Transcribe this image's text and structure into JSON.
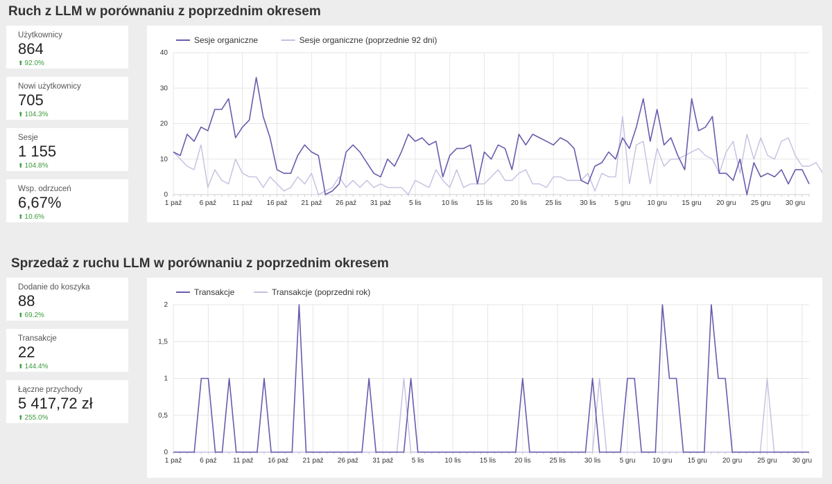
{
  "section1": {
    "title": "Ruch z LLM w porównaniu z poprzednim okresem"
  },
  "section2": {
    "title": "Sprzedaż z ruchu LLM w porównaniu z poprzednim okresem"
  },
  "kpis1": [
    {
      "label": "Użytkownicy",
      "value": "864",
      "delta": "92.0%"
    },
    {
      "label": "Nowi użytkownicy",
      "value": "705",
      "delta": "104.3%"
    },
    {
      "label": "Sesje",
      "value": "1 155",
      "delta": "104.8%"
    },
    {
      "label": "Wsp. odrzuceń",
      "value": "6,67%",
      "delta": "10.6%"
    }
  ],
  "kpis2": [
    {
      "label": "Dodanie do koszyka",
      "value": "88",
      "delta": "69.2%"
    },
    {
      "label": "Transakcje",
      "value": "22",
      "delta": "144.4%"
    },
    {
      "label": "Łączne przychody",
      "value": "5 417,72 zł",
      "delta": "255.0%"
    }
  ],
  "colors": {
    "primary": "#6a5aad",
    "secondary": "#c4bfe0",
    "positive": "#3a9a3a"
  },
  "chart_data": [
    {
      "type": "line",
      "xlabels": [
        "1 paź",
        "6 paź",
        "11 paź",
        "16 paź",
        "21 paź",
        "26 paź",
        "31 paź",
        "5 lis",
        "10 lis",
        "15 lis",
        "20 lis",
        "25 lis",
        "30 lis",
        "5 gru",
        "10 gru",
        "15 gru",
        "20 gru",
        "25 gru",
        "30 gru"
      ],
      "yticks": [
        0,
        10,
        20,
        30,
        40
      ],
      "ylim": [
        0,
        40
      ],
      "series": [
        {
          "name": "Sesje organiczne",
          "values": [
            12,
            11,
            17,
            15,
            19,
            18,
            24,
            24,
            27,
            16,
            19,
            21,
            33,
            22,
            16,
            7,
            6,
            6,
            11,
            14,
            12,
            11,
            0,
            1,
            3,
            12,
            14,
            12,
            9,
            6,
            5,
            10,
            8,
            12,
            17,
            15,
            16,
            14,
            15,
            5,
            11,
            13,
            13,
            14,
            3,
            12,
            10,
            14,
            13,
            7,
            17,
            14,
            17,
            16,
            15,
            14,
            16,
            15,
            13,
            4,
            3,
            8,
            9,
            12,
            10,
            16,
            13,
            19,
            27,
            15,
            24,
            14,
            16,
            11,
            7,
            27,
            18,
            19,
            22,
            6,
            6,
            4,
            10,
            0,
            9,
            5,
            6,
            5,
            7,
            3,
            7,
            7,
            3
          ]
        },
        {
          "name": "Sesje organiczne (poprzednie 92 dni)",
          "values": [
            12,
            10,
            8,
            7,
            14,
            2,
            7,
            4,
            3,
            10,
            6,
            5,
            5,
            2,
            5,
            3,
            1,
            2,
            5,
            3,
            6,
            0,
            1,
            2,
            5,
            2,
            4,
            2,
            4,
            2,
            3,
            2,
            2,
            2,
            0,
            4,
            3,
            2,
            7,
            4,
            2,
            7,
            2,
            3,
            3,
            3,
            5,
            7,
            4,
            4,
            6,
            7,
            3,
            3,
            2,
            5,
            5,
            4,
            4,
            4,
            6,
            1,
            6,
            5,
            5,
            22,
            3,
            14,
            15,
            3,
            13,
            8,
            10,
            10,
            11,
            12,
            13,
            11,
            10,
            6,
            12,
            15,
            6,
            17,
            10,
            16,
            11,
            10,
            15,
            16,
            11,
            8,
            8,
            9,
            6
          ]
        }
      ]
    },
    {
      "type": "line",
      "xlabels": [
        "1 paź",
        "6 paź",
        "11 paź",
        "16 paź",
        "21 paź",
        "26 paź",
        "31 paź",
        "5 lis",
        "10 lis",
        "15 lis",
        "20 lis",
        "25 lis",
        "30 lis",
        "5 gru",
        "10 gru",
        "15 gru",
        "20 gru",
        "25 gru",
        "30 gru"
      ],
      "yticks": [
        "0",
        "0,5",
        "1",
        "1,5",
        "2"
      ],
      "ylim": [
        0,
        2
      ],
      "series": [
        {
          "name": "Transakcje",
          "values": [
            0,
            0,
            0,
            0,
            1,
            1,
            0,
            0,
            1,
            0,
            0,
            0,
            0,
            1,
            0,
            0,
            0,
            0,
            2,
            0,
            0,
            0,
            0,
            0,
            0,
            0,
            0,
            0,
            1,
            0,
            0,
            0,
            0,
            0,
            1,
            0,
            0,
            0,
            0,
            0,
            0,
            0,
            0,
            0,
            0,
            0,
            0,
            0,
            0,
            0,
            1,
            0,
            0,
            0,
            0,
            0,
            0,
            0,
            0,
            0,
            1,
            0,
            0,
            0,
            0,
            1,
            1,
            0,
            0,
            0,
            2,
            1,
            1,
            0,
            0,
            0,
            0,
            2,
            1,
            1,
            0,
            0,
            0,
            0,
            0,
            0,
            0,
            0,
            0,
            0,
            0,
            0
          ]
        },
        {
          "name": "Transakcje (poprzedni rok)",
          "values": [
            0,
            0,
            0,
            0,
            0,
            0,
            0,
            0,
            0,
            0,
            0,
            0,
            0,
            0,
            0,
            0,
            0,
            0,
            0,
            0,
            0,
            0,
            0,
            0,
            0,
            0,
            0,
            0,
            0,
            0,
            0,
            0,
            0,
            1,
            0,
            0,
            0,
            0,
            0,
            0,
            0,
            0,
            0,
            0,
            0,
            0,
            0,
            0,
            0,
            0,
            0,
            0,
            0,
            0,
            0,
            0,
            0,
            0,
            0,
            0,
            0,
            1,
            0,
            0,
            0,
            0,
            0,
            0,
            0,
            0,
            0,
            0,
            0,
            0,
            0,
            0,
            0,
            0,
            0,
            0,
            0,
            0,
            0,
            0,
            0,
            1,
            0,
            0,
            0,
            0,
            0,
            0
          ]
        }
      ]
    }
  ]
}
